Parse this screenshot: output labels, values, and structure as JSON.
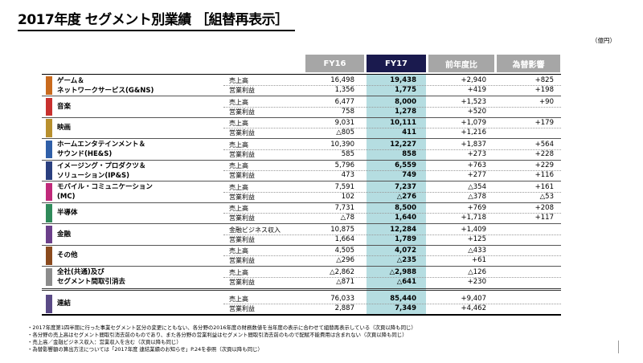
{
  "title": "2017年度 セグメント別業績 ［組替再表示］",
  "unit": "（億円）",
  "columns": {
    "fy16": "FY16",
    "fy17": "FY17",
    "yoy": "前年度比",
    "fx": "為替影響"
  },
  "rows": [
    {
      "name1": "ゲーム＆",
      "name2": "ネットワークサービス(G&NS)",
      "color": "#c96a1e",
      "m1": "売上高",
      "fy16_1": "16,498",
      "fy17_1": "19,438",
      "yoy_1": "+2,940",
      "fx_1": "+825",
      "m2": "営業利益",
      "fy16_2": "1,356",
      "fy17_2": "1,775",
      "yoy_2": "+419",
      "fx_2": "+198"
    },
    {
      "name1": "音楽",
      "color": "#c8302e",
      "m1": "売上高",
      "fy16_1": "6,477",
      "fy17_1": "8,000",
      "yoy_1": "+1,523",
      "fx_1": "+90",
      "m2": "営業利益",
      "fy16_2": "758",
      "fy17_2": "1,278",
      "yoy_2": "+520",
      "fx_2": ""
    },
    {
      "name1": "映画",
      "color": "#b8902e",
      "m1": "売上高",
      "fy16_1": "9,031",
      "fy17_1": "10,111",
      "yoy_1": "+1,079",
      "fx_1": "+179",
      "m2": "営業利益",
      "fy16_2": "△805",
      "fy17_2": "411",
      "yoy_2": "+1,216",
      "fx_2": ""
    },
    {
      "name1": "ホームエンタテインメント＆",
      "name2": "サウンド(HE&S)",
      "color": "#2f5fa8",
      "m1": "売上高",
      "fy16_1": "10,390",
      "fy17_1": "12,227",
      "yoy_1": "+1,837",
      "fx_1": "+564",
      "m2": "営業利益",
      "fy16_2": "585",
      "fy17_2": "858",
      "yoy_2": "+273",
      "fx_2": "+228"
    },
    {
      "name1": "イメージング・プロダクツ＆",
      "name2": "ソリューション(IP&S)",
      "color": "#2a3f7f",
      "m1": "売上高",
      "fy16_1": "5,796",
      "fy17_1": "6,559",
      "yoy_1": "+763",
      "fx_1": "+229",
      "m2": "営業利益",
      "fy16_2": "473",
      "fy17_2": "749",
      "yoy_2": "+277",
      "fx_2": "+116"
    },
    {
      "name1": "モバイル・コミュニケーション",
      "name2": "(MC)",
      "color": "#c0297a",
      "m1": "売上高",
      "fy16_1": "7,591",
      "fy17_1": "7,237",
      "yoy_1": "△354",
      "fx_1": "+161",
      "m2": "営業利益",
      "fy16_2": "102",
      "fy17_2": "△276",
      "yoy_2": "△378",
      "fx_2": "△53"
    },
    {
      "name1": "半導体",
      "color": "#2f8a5a",
      "m1": "売上高",
      "fy16_1": "7,731",
      "fy17_1": "8,500",
      "yoy_1": "+769",
      "fx_1": "+208",
      "m2": "営業利益",
      "fy16_2": "△78",
      "fy17_2": "1,640",
      "yoy_2": "+1,718",
      "fx_2": "+117"
    },
    {
      "name1": "金融",
      "color": "#6b3f8a",
      "m1": "金融ビジネス収入",
      "fy16_1": "10,875",
      "fy17_1": "12,284",
      "yoy_1": "+1,409",
      "fx_1": "",
      "m2": "営業利益",
      "fy16_2": "1,664",
      "fy17_2": "1,789",
      "yoy_2": "+125",
      "fx_2": ""
    },
    {
      "name1": "その他",
      "color": "#8a4a1e",
      "m1": "売上高",
      "fy16_1": "4,505",
      "fy17_1": "4,072",
      "yoy_1": "△433",
      "fx_1": "",
      "m2": "営業利益",
      "fy16_2": "△296",
      "fy17_2": "△235",
      "yoy_2": "+61",
      "fx_2": ""
    },
    {
      "name1": "全社(共通)及び",
      "name2": "セグメント間取引消去",
      "color": "#8c8c8c",
      "m1": "売上高",
      "fy16_1": "△2,862",
      "fy17_1": "△2,988",
      "yoy_1": "△126",
      "fx_1": "",
      "m2": "営業利益",
      "fy16_2": "△871",
      "fy17_2": "△641",
      "yoy_2": "+230",
      "fx_2": ""
    },
    {
      "name1": "連結",
      "color": "#5a4a86",
      "m1": "売上高",
      "fy16_1": "76,033",
      "fy17_1": "85,440",
      "yoy_1": "+9,407",
      "fx_1": "",
      "m2": "営業利益",
      "fy16_2": "2,887",
      "fy17_2": "7,349",
      "yoy_2": "+4,462",
      "fx_2": ""
    }
  ],
  "notes": [
    "2017年度第1四半期に行った事業セグメント区分の変更にともない、各分野の2016年度の財務数値を当年度の表示に合わせて組替再表示している（次頁以降も同じ）",
    "各分野の売上高はセグメント間取引消去前のものであり、また各分野の営業利益はセグメント間取引消去前のもので配賦不能費用は含まれない（次頁以降も同じ）",
    "売上高／金融ビジネス収入：営業収入を含む（次頁以降も同じ）",
    "為替影響額の算出方法については「2017年度 連結業績のお知らせ」P.24を参照（次頁以降も同じ）"
  ]
}
